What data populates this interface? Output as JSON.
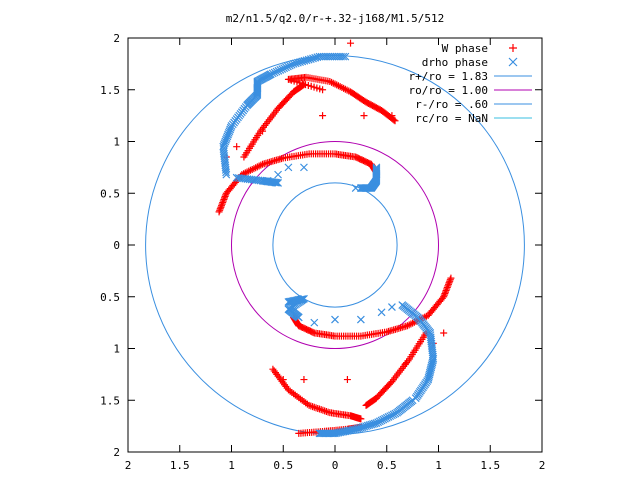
{
  "chart_data": {
    "type": "scatter",
    "title": "m2/n1.5/q2.0/r-+.32-j168/M1.5/512",
    "xlabel": "",
    "ylabel": "",
    "xlim": [
      -2,
      2
    ],
    "ylim": [
      -2,
      2
    ],
    "x_ticks": [
      -2,
      -1.5,
      -1,
      -0.5,
      0,
      0.5,
      1,
      1.5,
      2
    ],
    "y_ticks": [
      -2,
      -1.5,
      -1,
      -0.5,
      0,
      0.5,
      1,
      1.5,
      2
    ],
    "x_tick_labels": [
      "2",
      "1.5",
      "1",
      "0.5",
      "0",
      "0.5",
      "1",
      "1.5",
      "2"
    ],
    "y_tick_labels": [
      "2",
      "1.5",
      "1",
      "0.5",
      "0",
      "0.5",
      "1",
      "1.5",
      "2"
    ],
    "grid": false,
    "legend_position": "top-right",
    "series": [
      {
        "name": "W phase",
        "kind": "points",
        "marker": "plus",
        "color": "#ff0000",
        "arms": [
          [
            [
              -0.12,
              1.5
            ],
            [
              -0.45,
              1.6
            ],
            [
              -0.28,
              1.62
            ],
            [
              -0.05,
              1.58
            ],
            [
              0.15,
              1.48
            ],
            [
              0.3,
              1.38
            ],
            [
              0.45,
              1.3
            ],
            [
              0.58,
              1.2
            ]
          ],
          [
            [
              -1.12,
              0.32
            ],
            [
              -1.05,
              0.5
            ],
            [
              -0.9,
              0.68
            ],
            [
              -0.7,
              0.78
            ],
            [
              -0.5,
              0.84
            ],
            [
              -0.25,
              0.88
            ],
            [
              0.0,
              0.88
            ],
            [
              0.2,
              0.85
            ],
            [
              0.35,
              0.78
            ],
            [
              0.4,
              0.7
            ]
          ],
          [
            [
              -0.88,
              0.85
            ],
            [
              -0.72,
              1.1
            ],
            [
              -0.55,
              1.32
            ],
            [
              -0.4,
              1.48
            ],
            [
              -0.3,
              1.55
            ]
          ],
          [
            [
              1.12,
              -0.32
            ],
            [
              1.05,
              -0.5
            ],
            [
              0.9,
              -0.68
            ],
            [
              0.7,
              -0.78
            ],
            [
              0.5,
              -0.84
            ],
            [
              0.25,
              -0.88
            ],
            [
              0.0,
              -0.88
            ],
            [
              -0.2,
              -0.85
            ],
            [
              -0.35,
              -0.78
            ],
            [
              -0.4,
              -0.7
            ]
          ],
          [
            [
              0.88,
              -0.85
            ],
            [
              0.72,
              -1.1
            ],
            [
              0.55,
              -1.32
            ],
            [
              0.4,
              -1.48
            ],
            [
              0.3,
              -1.55
            ]
          ],
          [
            [
              -0.6,
              -1.2
            ],
            [
              -0.45,
              -1.4
            ],
            [
              -0.25,
              -1.55
            ],
            [
              -0.05,
              -1.62
            ],
            [
              0.15,
              -1.65
            ],
            [
              0.25,
              -1.68
            ]
          ],
          [
            [
              -0.35,
              -1.82
            ],
            [
              -0.1,
              -1.8
            ],
            [
              0.12,
              -1.78
            ],
            [
              0.25,
              -1.76
            ]
          ]
        ],
        "scattered": [
          [
            0.15,
            1.95
          ],
          [
            -0.12,
            1.25
          ],
          [
            -0.7,
            1.1
          ],
          [
            -0.95,
            0.95
          ],
          [
            -1.05,
            0.85
          ],
          [
            0.55,
            1.25
          ],
          [
            0.28,
            1.25
          ],
          [
            0.12,
            -1.3
          ],
          [
            -0.5,
            -1.3
          ],
          [
            -0.3,
            -1.3
          ],
          [
            0.68,
            -1.15
          ],
          [
            0.95,
            -0.95
          ],
          [
            1.05,
            -0.85
          ]
        ]
      },
      {
        "name": "drho phase",
        "kind": "points",
        "marker": "cross",
        "color": "#3a8fe0",
        "arms": [
          [
            [
              -1.05,
              0.68
            ],
            [
              -1.08,
              0.95
            ],
            [
              -1.0,
              1.15
            ],
            [
              -0.85,
              1.35
            ],
            [
              -0.75,
              1.45
            ],
            [
              -0.75,
              1.58
            ],
            [
              -0.62,
              1.65
            ],
            [
              -0.4,
              1.75
            ],
            [
              -0.15,
              1.82
            ],
            [
              0.1,
              1.82
            ]
          ],
          [
            [
              -0.95,
              0.65
            ],
            [
              -0.7,
              0.62
            ],
            [
              -0.55,
              0.6
            ]
          ],
          [
            [
              0.25,
              0.55
            ],
            [
              0.35,
              0.55
            ],
            [
              0.4,
              0.62
            ],
            [
              0.4,
              0.75
            ]
          ],
          [
            [
              -0.45,
              -0.55
            ],
            [
              -0.3,
              -0.52
            ],
            [
              -0.45,
              -0.62
            ],
            [
              -0.35,
              -0.7
            ]
          ],
          [
            [
              0.65,
              -0.58
            ],
            [
              0.8,
              -0.7
            ],
            [
              0.92,
              -0.85
            ],
            [
              0.95,
              -1.1
            ],
            [
              0.9,
              -1.3
            ],
            [
              0.78,
              -1.48
            ]
          ],
          [
            [
              0.75,
              -1.5
            ],
            [
              0.6,
              -1.62
            ],
            [
              0.4,
              -1.72
            ],
            [
              0.2,
              -1.78
            ],
            [
              0.0,
              -1.82
            ],
            [
              -0.15,
              -1.82
            ]
          ]
        ],
        "scattered": [
          [
            -0.65,
            0.62
          ],
          [
            -0.55,
            0.68
          ],
          [
            -0.45,
            0.75
          ],
          [
            -0.3,
            0.75
          ],
          [
            0.2,
            0.55
          ],
          [
            0.3,
            0.55
          ],
          [
            -0.2,
            -0.75
          ],
          [
            0.0,
            -0.72
          ],
          [
            0.25,
            -0.72
          ],
          [
            0.45,
            -0.65
          ],
          [
            0.55,
            -0.6
          ]
        ]
      },
      {
        "name": "r+/ro = 1.83",
        "kind": "circle",
        "radius": 1.83,
        "color": "#3a8fe0"
      },
      {
        "name": "ro/ro = 1.00",
        "kind": "circle",
        "radius": 1.0,
        "color": "#b000b0"
      },
      {
        "name": "r-/ro = .60",
        "kind": "circle",
        "radius": 0.6,
        "color": "#3a8fe0"
      },
      {
        "name": "rc/ro = NaN",
        "kind": "circle",
        "radius": null,
        "color": "#3abfe0"
      }
    ]
  }
}
